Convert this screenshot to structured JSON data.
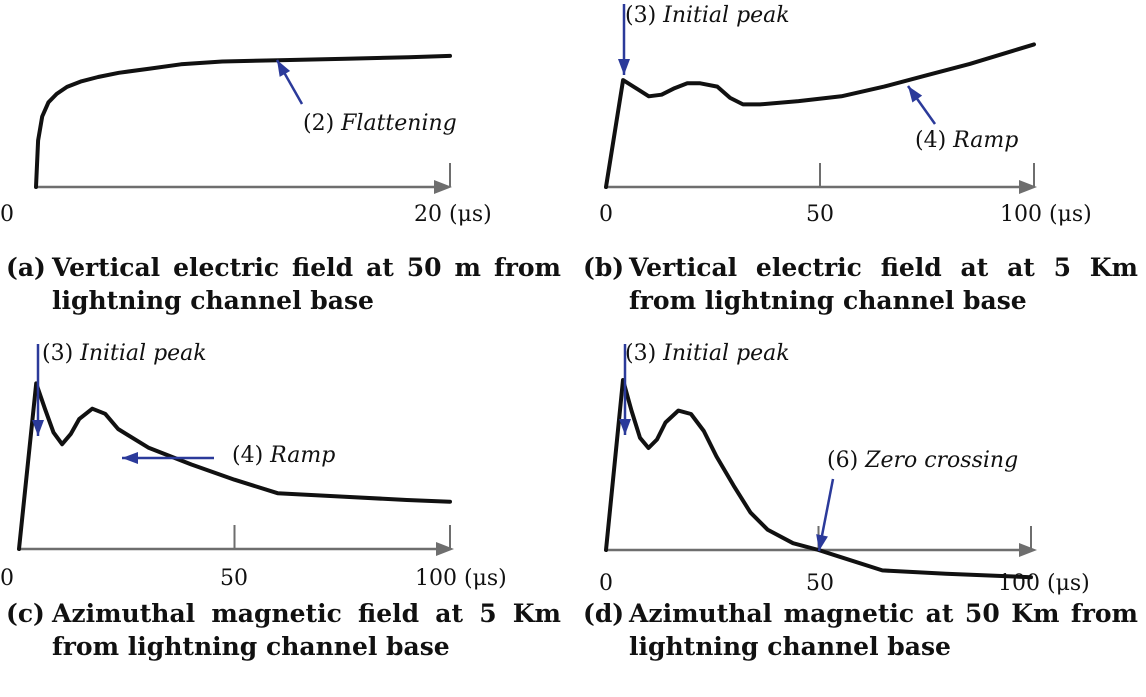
{
  "chart_data": [
    {
      "type": "line",
      "caption_tag": "(a)",
      "caption": "Vertical electric field at 50 m from lightning channel base",
      "xlim": [
        0,
        20
      ],
      "x_ticks": [
        "0",
        "20 (μs)"
      ],
      "x_tick_values": [
        0,
        20
      ],
      "series": [
        {
          "x": [
            0,
            0.1,
            0.3,
            0.6,
            1.0,
            1.5,
            2.2,
            3.0,
            4.0,
            5.5,
            7.0,
            9.0,
            12.0,
            15.0,
            18.0,
            20.0
          ],
          "y": [
            0,
            0.33,
            0.5,
            0.6,
            0.66,
            0.71,
            0.75,
            0.78,
            0.81,
            0.84,
            0.87,
            0.89,
            0.9,
            0.91,
            0.92,
            0.93
          ]
        }
      ],
      "annotations": [
        {
          "number": "(2)",
          "label": "Flattening",
          "arrow_x": 12.2,
          "arrow_y": 0.89
        }
      ]
    },
    {
      "type": "line",
      "caption_tag": "(b)",
      "caption": "Vertical electric field at at 5 Km from lightning channel base",
      "xlim": [
        0,
        100
      ],
      "x_ticks": [
        "0",
        "50",
        "100 (μs)"
      ],
      "x_tick_values": [
        0,
        50,
        100
      ],
      "series": [
        {
          "x": [
            0,
            4,
            7,
            10,
            13,
            16,
            19,
            22,
            26,
            29,
            32,
            36,
            45,
            55,
            65,
            75,
            85,
            95,
            100
          ],
          "y": [
            0,
            0.66,
            0.61,
            0.56,
            0.57,
            0.61,
            0.64,
            0.64,
            0.62,
            0.55,
            0.51,
            0.51,
            0.53,
            0.56,
            0.62,
            0.69,
            0.76,
            0.84,
            0.88
          ]
        }
      ],
      "annotations": [
        {
          "number": "(3)",
          "label": "Initial peak",
          "arrow_x": 4,
          "arrow_y": 0.66
        },
        {
          "number": "(4)",
          "label": "Ramp",
          "arrow_x": 72,
          "arrow_y": 0.67
        }
      ]
    },
    {
      "type": "line",
      "caption_tag": "(c)",
      "caption": "Azimuthal magnetic field at 5 Km from lightning channel base",
      "xlim": [
        0,
        100
      ],
      "x_ticks": [
        "0",
        "50",
        "100 (μs)"
      ],
      "x_tick_values": [
        0,
        50,
        100
      ],
      "series": [
        {
          "x": [
            0,
            4,
            6,
            8,
            10,
            12,
            14,
            17,
            20,
            23,
            30,
            40,
            50,
            60,
            75,
            90,
            100
          ],
          "y": [
            0,
            0.98,
            0.83,
            0.69,
            0.62,
            0.68,
            0.77,
            0.83,
            0.8,
            0.71,
            0.6,
            0.5,
            0.41,
            0.33,
            0.31,
            0.29,
            0.28
          ]
        }
      ],
      "annotations": [
        {
          "number": "(3)",
          "label": "Initial peak",
          "arrow_x": 4,
          "arrow_y": 0.98
        },
        {
          "number": "(4)",
          "label": "Ramp",
          "arrow_x": 23,
          "arrow_y": 0.86
        }
      ]
    },
    {
      "type": "line",
      "caption_tag": "(d)",
      "caption": "Azimuthal magnetic at 50 Km from lightning channel base",
      "xlim": [
        0,
        100
      ],
      "x_ticks": [
        "0",
        "50",
        "100 (μs)"
      ],
      "x_tick_values": [
        0,
        50,
        100
      ],
      "series": [
        {
          "x": [
            0,
            4,
            6,
            8,
            10,
            12,
            14,
            17,
            20,
            23,
            26,
            30,
            34,
            38,
            44,
            50,
            55,
            65,
            80,
            100
          ],
          "y": [
            0,
            1.0,
            0.82,
            0.66,
            0.6,
            0.65,
            0.75,
            0.82,
            0.8,
            0.7,
            0.55,
            0.38,
            0.22,
            0.12,
            0.04,
            0.0,
            -0.04,
            -0.12,
            -0.14,
            -0.16
          ]
        }
      ],
      "annotations": [
        {
          "number": "(3)",
          "label": "Initial peak",
          "arrow_x": 4,
          "arrow_y": 1.0
        },
        {
          "number": "(6)",
          "label": "Zero crossing",
          "arrow_x": 51,
          "arrow_y": 0.0
        }
      ]
    }
  ]
}
